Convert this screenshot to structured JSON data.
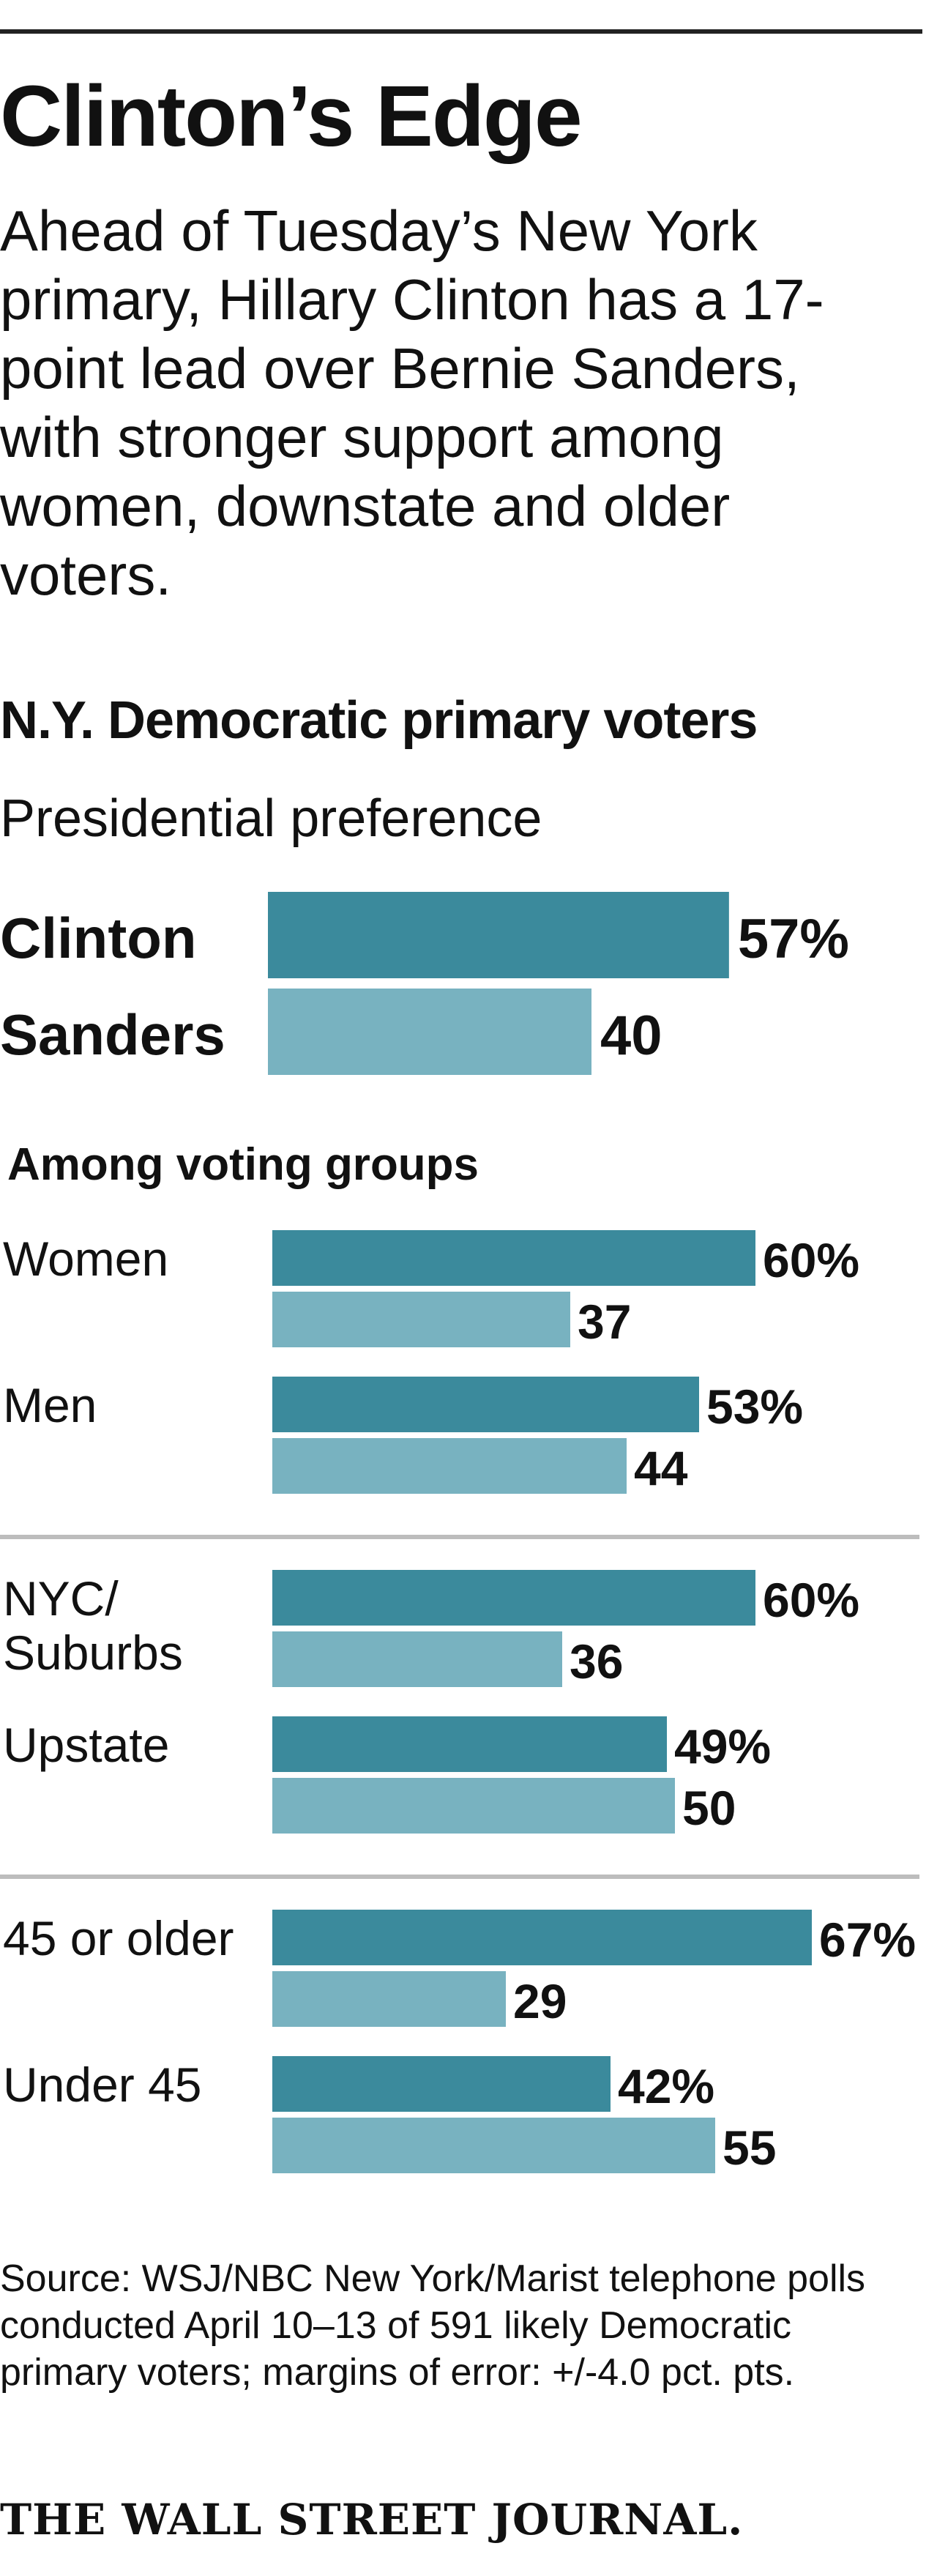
{
  "header": {
    "title": "Clinton’s Edge",
    "dek": "Ahead of Tuesday’s New York primary, Hillary Clinton has a 17-point lead over Bernie Sanders, with stronger support among women, downstate and older voters."
  },
  "section": {
    "heading": "N.Y.  Democratic primary voters",
    "subheading": "Presidential preference",
    "groups_heading": "Among voting groups"
  },
  "colors": {
    "clinton": "#3b8a9c",
    "sanders": "#78b2c0",
    "divider": "#bdbdbd"
  },
  "chart_data": [
    {
      "type": "bar",
      "orientation": "horizontal",
      "title": "Presidential preference",
      "categories": [
        "Clinton",
        "Sanders"
      ],
      "values": [
        57,
        40
      ],
      "value_labels": [
        "57%",
        "40"
      ],
      "xlim": [
        0,
        100
      ]
    },
    {
      "type": "bar",
      "orientation": "horizontal",
      "title": "Among voting groups",
      "categories": [
        "Women",
        "Men",
        "NYC/ Suburbs",
        "Upstate",
        "45 or older",
        "Under 45"
      ],
      "series": [
        {
          "name": "Clinton",
          "values": [
            60,
            53,
            60,
            49,
            67,
            42
          ],
          "value_labels": [
            "60%",
            "53%",
            "60%",
            "49%",
            "67%",
            "42%"
          ]
        },
        {
          "name": "Sanders",
          "values": [
            37,
            44,
            36,
            50,
            29,
            55
          ],
          "value_labels": [
            "37",
            "44",
            "36",
            "50",
            "29",
            "55"
          ]
        }
      ],
      "xlim": [
        0,
        100
      ]
    }
  ],
  "footer": {
    "source": "Source: WSJ/NBC New York/Marist telephone polls conducted April 10–13 of 591 likely Democratic primary voters; margins of error: +/-4.0 pct. pts.",
    "publisher": "THE WALL STREET JOURNAL."
  }
}
